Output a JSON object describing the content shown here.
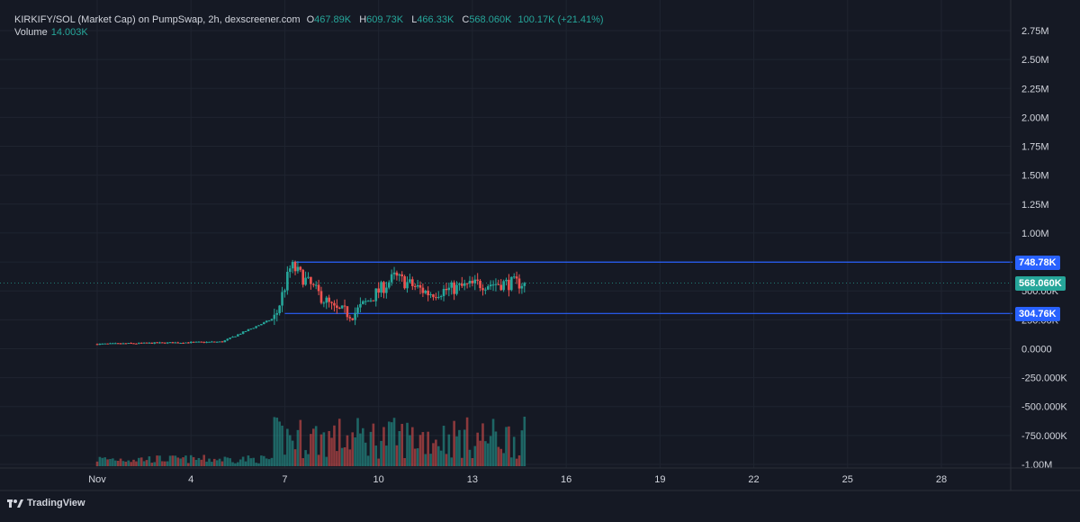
{
  "legend": {
    "symbol": "KIRKIFY/SOL (Market Cap) on PumpSwap, 2h, dexscreener.com",
    "open_label": "O",
    "open": "467.89K",
    "high_label": "H",
    "high": "609.73K",
    "low_label": "L",
    "low": "466.33K",
    "close_label": "C",
    "close": "568.060K",
    "change": "100.17K (+21.41%)",
    "volume_label": "Volume",
    "volume": "14.003K"
  },
  "branding": {
    "logo_text": "TradingView"
  },
  "tags": {
    "upper": "748.78K",
    "current": "568.060K",
    "lower": "304.76K"
  },
  "colors": {
    "background": "#151924",
    "up": "#26a69a",
    "down": "#ef5350",
    "level_line": "#2962ff",
    "current_tag": "#26a69a",
    "text": "#d1d4dc"
  },
  "chart_data": {
    "type": "candlestick",
    "title": "KIRKIFY/SOL (Market Cap) on PumpSwap, 2h, dexscreener.com",
    "y_ticks": [
      "2.75M",
      "2.50M",
      "2.25M",
      "2.00M",
      "1.75M",
      "1.50M",
      "1.25M",
      "1.00M",
      "750.00K",
      "500.00K",
      "250.00K",
      "0.0000",
      "-250.000K",
      "-500.000K",
      "-750.000K",
      "-1.00M"
    ],
    "y_tick_values": [
      2750000,
      2500000,
      2250000,
      2000000,
      1750000,
      1500000,
      1250000,
      1000000,
      750000,
      500000,
      250000,
      0,
      -250000,
      -500000,
      -750000,
      -1000000
    ],
    "ylim": [
      -1000000,
      2750000
    ],
    "x_ticks": [
      "Nov",
      "4",
      "7",
      "10",
      "13",
      "16",
      "19",
      "22",
      "25",
      "28"
    ],
    "x_tick_days": [
      1,
      4,
      7,
      10,
      13,
      16,
      19,
      22,
      25,
      28
    ],
    "xlim_days": [
      0.6,
      30.5
    ],
    "grid": true,
    "horizontal_levels": [
      {
        "value": 748780,
        "label": "748.78K",
        "from_day": 7.3
      },
      {
        "value": 304760,
        "label": "304.76K",
        "from_day": 7.0
      }
    ],
    "last_price": 568060,
    "series_segments": [
      {
        "from_day": 1.0,
        "to_day": 5.0,
        "start": 40000,
        "end": 60000
      },
      {
        "from_day": 5.0,
        "to_day": 6.7,
        "start": 60000,
        "end": 270000
      },
      {
        "from_day": 6.7,
        "to_day": 7.2,
        "start": 270000,
        "end": 720000
      },
      {
        "from_day": 7.2,
        "to_day": 8.6,
        "start": 720000,
        "end": 330000
      },
      {
        "from_day": 8.6,
        "to_day": 9.2,
        "start": 330000,
        "end": 300000
      },
      {
        "from_day": 9.2,
        "to_day": 10.5,
        "start": 300000,
        "end": 620000
      },
      {
        "from_day": 10.5,
        "to_day": 11.6,
        "start": 620000,
        "end": 480000
      },
      {
        "from_day": 11.6,
        "to_day": 13.2,
        "start": 480000,
        "end": 560000
      },
      {
        "from_day": 13.2,
        "to_day": 14.7,
        "start": 560000,
        "end": 568060
      }
    ],
    "volume_scale_top_value": -250000
  }
}
